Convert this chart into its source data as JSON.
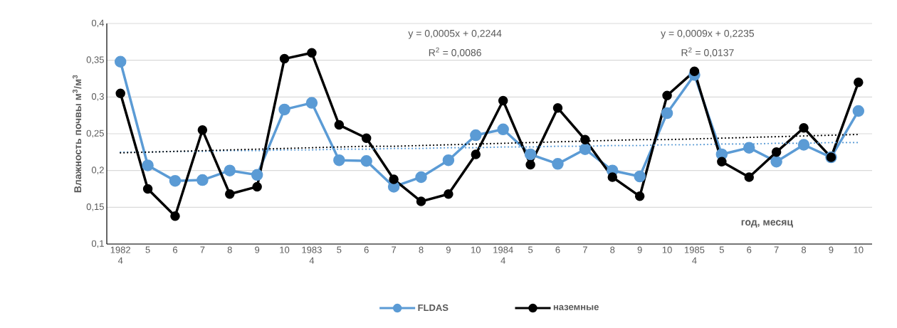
{
  "chart_data": {
    "type": "line",
    "xlabel": "год, месяц",
    "ylabel": "Влажность почвы м$^{3}$/м$^{3}$",
    "categories": [
      "1982 4",
      "5",
      "6",
      "7",
      "8",
      "9",
      "10",
      "1983 4",
      "5",
      "6",
      "7",
      "8",
      "9",
      "10",
      "1984 4",
      "5",
      "6",
      "7",
      "8",
      "9",
      "10",
      "1985 4",
      "5",
      "6",
      "7",
      "8",
      "9",
      "10"
    ],
    "series": [
      {
        "name": "FLDAS",
        "color": "#5b9bd5",
        "values": [
          0.348,
          0.207,
          0.186,
          0.187,
          0.2,
          0.194,
          0.283,
          0.292,
          0.214,
          0.213,
          0.178,
          0.191,
          0.214,
          0.248,
          0.256,
          0.222,
          0.209,
          0.229,
          0.2,
          0.192,
          0.278,
          0.33,
          0.222,
          0.231,
          0.212,
          0.235,
          0.218,
          0.281
        ]
      },
      {
        "name": "наземные",
        "color": "#000000",
        "values": [
          0.305,
          0.175,
          0.138,
          0.255,
          0.168,
          0.178,
          0.352,
          0.36,
          0.262,
          0.244,
          0.188,
          0.158,
          0.168,
          0.222,
          0.295,
          0.208,
          0.285,
          0.242,
          0.191,
          0.165,
          0.302,
          0.335,
          0.212,
          0.191,
          0.225,
          0.258,
          0.218,
          0.32
        ]
      },
      {
        "type": "line",
        "color": "#5b9bd5",
        "marker": "none",
        "line_style": "dotted",
        "values": [
          0.225,
          0.225,
          0.226,
          0.226,
          0.227,
          0.227,
          0.228,
          0.228,
          0.229,
          0.229,
          0.23,
          0.23,
          0.231,
          0.231,
          0.232,
          0.232,
          0.233,
          0.233,
          0.234,
          0.234,
          0.235,
          0.235,
          0.236,
          0.236,
          0.237,
          0.237,
          0.238,
          0.238
        ]
      },
      {
        "type": "line",
        "color": "#000000",
        "marker": "none",
        "line_style": "dotted",
        "values": [
          0.224,
          0.225,
          0.226,
          0.227,
          0.228,
          0.229,
          0.23,
          0.231,
          0.232,
          0.233,
          0.233,
          0.234,
          0.235,
          0.236,
          0.237,
          0.238,
          0.239,
          0.24,
          0.241,
          0.242,
          0.242,
          0.243,
          0.244,
          0.245,
          0.246,
          0.247,
          0.248,
          0.249
        ]
      }
    ],
    "marker": "circle",
    "line_style": "solid",
    "ylim": [
      0.1,
      0.4
    ],
    "yticks": [
      {
        "value": 0.1,
        "label": "0,1"
      },
      {
        "value": 0.15,
        "label": "0,15"
      },
      {
        "value": 0.2,
        "label": "0,2"
      },
      {
        "value": 0.25,
        "label": "0,25"
      },
      {
        "value": 0.3,
        "label": "0,3"
      },
      {
        "value": 0.35,
        "label": "0,35"
      },
      {
        "value": 0.4,
        "label": "0,4"
      }
    ],
    "grid": "y",
    "legend": "bottom",
    "annotations": [
      "y = 0,0005x + 0,2244",
      "R$^{2}$ = 0,0086",
      "y = 0,0009x + 0,2235",
      "R$^{2}$ = 0,0137"
    ]
  }
}
